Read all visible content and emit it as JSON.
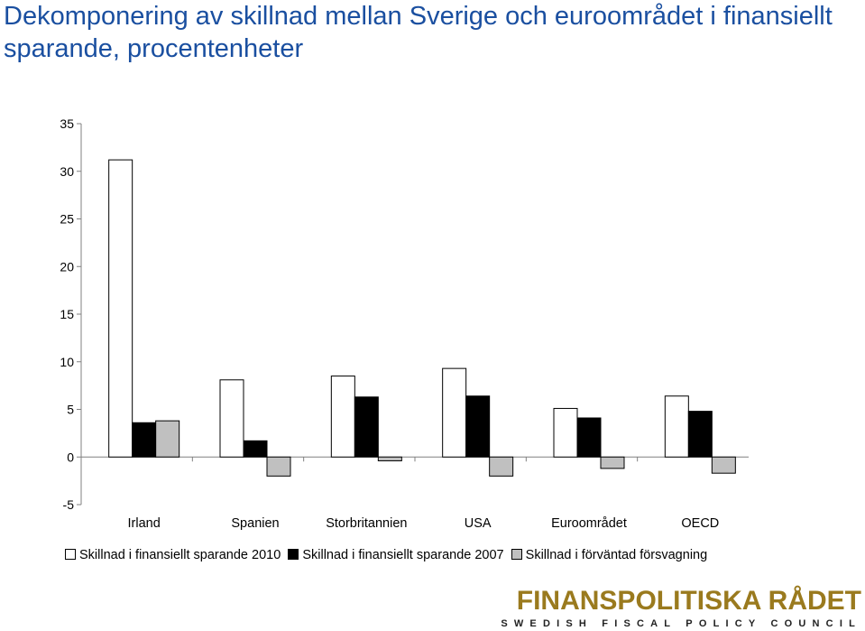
{
  "title": "Dekomponering av skillnad mellan Sverige och euroområdet i finansiellt sparande, procentenheter",
  "logo": {
    "main": "FINANSPOLITISKA RÅDET",
    "sub": "SWEDISH FISCAL POLICY COUNCIL",
    "color": "#9a7a1e"
  },
  "chart_data": {
    "type": "bar",
    "categories": [
      "Irland",
      "Spanien",
      "Storbritannien",
      "USA",
      "Euroområdet",
      "OECD"
    ],
    "series": [
      {
        "name": "Skillnad i finansiellt sparande 2010",
        "color": "#ffffff",
        "values": [
          31.2,
          8.1,
          8.5,
          9.3,
          5.1,
          6.4
        ]
      },
      {
        "name": "Skillnad i finansiellt sparande 2007",
        "color": "#000000",
        "values": [
          3.6,
          1.7,
          6.3,
          6.4,
          4.1,
          4.8
        ]
      },
      {
        "name": "Skillnad i förväntad försvagning",
        "color": "#c0c0c0",
        "values": [
          3.8,
          -2.0,
          -0.4,
          -2.0,
          -1.2,
          -1.7
        ]
      }
    ],
    "ylim": [
      -5,
      35
    ],
    "yticks": [
      "35",
      "30",
      "25",
      "20",
      "15",
      "10",
      "5",
      "0",
      "-5"
    ],
    "legend_position": "bottom",
    "grid": false
  }
}
